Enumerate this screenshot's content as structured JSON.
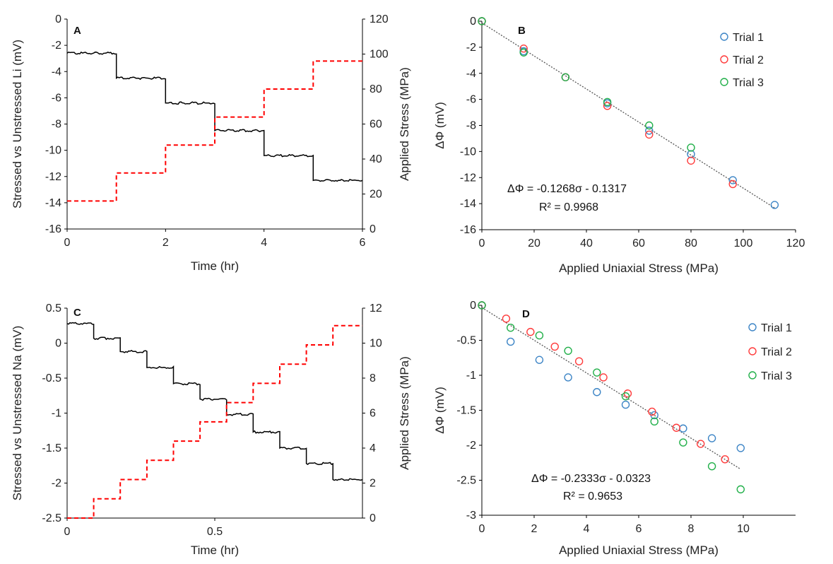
{
  "chart_data": [
    {
      "panel": "A",
      "type": "line",
      "xlabel": "Time (hr)",
      "ylabel": "Stressed vs Unstressed Li (mV)",
      "y2label": "Applied Stress (MPa)",
      "xlim": [
        0,
        6
      ],
      "ylim": [
        -16,
        0
      ],
      "y2lim": [
        0,
        120
      ],
      "xticks": [
        "0",
        "2",
        "4",
        "6"
      ],
      "yticks": [
        "0",
        "-2",
        "-4",
        "-6",
        "-8",
        "-10",
        "-12",
        "-14",
        "-16"
      ],
      "y2ticks": [
        "120",
        "100",
        "80",
        "60",
        "40",
        "20",
        "0"
      ],
      "series": [
        {
          "axis": "left",
          "color": "#000000",
          "style": "solid",
          "x": [
            0,
            1,
            1,
            2,
            2,
            3,
            3,
            4,
            4,
            5,
            5,
            6
          ],
          "y": [
            -2.6,
            -2.6,
            -4.5,
            -4.5,
            -6.4,
            -6.4,
            -8.5,
            -8.5,
            -10.4,
            -10.4,
            -12.3,
            -12.3
          ]
        },
        {
          "axis": "right",
          "color": "#ff0000",
          "style": "dashed",
          "x": [
            0,
            1,
            1,
            2,
            2,
            3,
            3,
            4,
            4,
            5,
            5,
            6
          ],
          "y": [
            16,
            16,
            32,
            32,
            48,
            48,
            64,
            64,
            80,
            80,
            96,
            96
          ]
        }
      ]
    },
    {
      "panel": "B",
      "type": "scatter",
      "xlabel": "Applied Uniaxial Stress (MPa)",
      "ylabel": "ΔΦ (mV)",
      "xlim": [
        0,
        120
      ],
      "ylim": [
        -16,
        0
      ],
      "xticks": [
        "0",
        "20",
        "40",
        "60",
        "80",
        "100",
        "120"
      ],
      "yticks": [
        "0",
        "-2",
        "-4",
        "-6",
        "-8",
        "-10",
        "-12",
        "-14",
        "-16"
      ],
      "equation": "ΔΦ = -0.1268σ - 0.1317",
      "r2": "R² = 0.9968",
      "trend": {
        "slope": -0.1268,
        "intercept": -0.1317,
        "x": [
          0,
          112
        ]
      },
      "series": [
        {
          "name": "Trial 1",
          "color": "#3d85c6",
          "x": [
            0,
            16,
            32,
            48,
            64,
            80,
            96,
            112
          ],
          "y": [
            0,
            -2.3,
            -4.3,
            -6.3,
            -8.4,
            -10.2,
            -12.2,
            -14.1
          ]
        },
        {
          "name": "Trial 2",
          "color": "#ff3b3b",
          "x": [
            0,
            16,
            32,
            48,
            64,
            80,
            96
          ],
          "y": [
            0,
            -2.1,
            -4.3,
            -6.5,
            -8.7,
            -10.7,
            -12.5
          ]
        },
        {
          "name": "Trial 3",
          "color": "#22b04a",
          "x": [
            0,
            16,
            32,
            48,
            64,
            80
          ],
          "y": [
            0,
            -2.4,
            -4.3,
            -6.2,
            -8.0,
            -9.7
          ]
        }
      ]
    },
    {
      "panel": "C",
      "type": "line",
      "xlabel": "Time (hr)",
      "ylabel": "Stressed vs Unstressed Na (mV)",
      "y2label": "Applied Stress (MPa)",
      "xlim": [
        0,
        1.0
      ],
      "ylim": [
        -2.5,
        0.5
      ],
      "y2lim": [
        0,
        12
      ],
      "xticks": [
        "0",
        "0.5"
      ],
      "yticks": [
        "0.5",
        "0",
        "-0.5",
        "-1",
        "-1.5",
        "-2",
        "-2.5"
      ],
      "y2ticks": [
        "12",
        "10",
        "8",
        "6",
        "4",
        "2",
        "0"
      ],
      "series": [
        {
          "axis": "left",
          "color": "#000000",
          "style": "solid",
          "x": [
            0,
            0.09,
            0.09,
            0.18,
            0.18,
            0.27,
            0.27,
            0.36,
            0.36,
            0.45,
            0.45,
            0.54,
            0.54,
            0.63,
            0.63,
            0.72,
            0.72,
            0.81,
            0.81,
            0.9,
            0.9,
            1.0
          ],
          "y": [
            0.28,
            0.28,
            0.07,
            0.07,
            -0.12,
            -0.12,
            -0.35,
            -0.35,
            -0.58,
            -0.58,
            -0.8,
            -0.8,
            -1.02,
            -1.02,
            -1.27,
            -1.27,
            -1.5,
            -1.5,
            -1.72,
            -1.72,
            -1.95,
            -1.95
          ]
        },
        {
          "axis": "right",
          "color": "#ff0000",
          "style": "dashed",
          "x": [
            0,
            0.09,
            0.09,
            0.18,
            0.18,
            0.27,
            0.27,
            0.36,
            0.36,
            0.45,
            0.45,
            0.54,
            0.54,
            0.63,
            0.63,
            0.72,
            0.72,
            0.81,
            0.81,
            0.9,
            0.9,
            1.0
          ],
          "y": [
            0,
            0,
            1.1,
            1.1,
            2.2,
            2.2,
            3.3,
            3.3,
            4.4,
            4.4,
            5.5,
            5.5,
            6.6,
            6.6,
            7.7,
            7.7,
            8.8,
            8.8,
            9.9,
            9.9,
            11.0,
            11.0
          ]
        }
      ]
    },
    {
      "panel": "D",
      "type": "scatter",
      "xlabel": "Applied Uniaxial Stress (MPa)",
      "ylabel": "ΔΦ (mV)",
      "xlim": [
        0,
        12
      ],
      "ylim": [
        -3,
        0
      ],
      "xticks": [
        "0",
        "2",
        "4",
        "6",
        "8",
        "10"
      ],
      "yticks": [
        "0",
        "-0.5",
        "-1",
        "-1.5",
        "-2",
        "-2.5",
        "-3"
      ],
      "equation": "ΔΦ = -0.2333σ - 0.0323",
      "r2": "R² = 0.9653",
      "trend": {
        "slope": -0.2333,
        "intercept": -0.0323,
        "x": [
          0,
          9.9
        ]
      },
      "series": [
        {
          "name": "Trial 1",
          "color": "#3d85c6",
          "x": [
            0,
            1.1,
            2.2,
            3.3,
            4.4,
            5.5,
            6.6,
            7.7,
            8.8,
            9.9
          ],
          "y": [
            0,
            -0.52,
            -0.78,
            -1.03,
            -1.24,
            -1.42,
            -1.57,
            -1.76,
            -1.9,
            -2.04
          ]
        },
        {
          "name": "Trial 2",
          "color": "#ff3b3b",
          "x": [
            0,
            0.93,
            1.86,
            2.79,
            3.72,
            4.65,
            5.58,
            6.51,
            7.44,
            8.37,
            9.3
          ],
          "y": [
            0,
            -0.19,
            -0.38,
            -0.59,
            -0.8,
            -1.03,
            -1.26,
            -1.52,
            -1.75,
            -1.98,
            -2.2
          ]
        },
        {
          "name": "Trial 3",
          "color": "#22b04a",
          "x": [
            0,
            1.1,
            2.2,
            3.3,
            4.4,
            5.5,
            6.6,
            7.7,
            8.8,
            9.9
          ],
          "y": [
            0,
            -0.32,
            -0.43,
            -0.65,
            -0.96,
            -1.3,
            -1.66,
            -1.96,
            -2.3,
            -2.63
          ]
        }
      ]
    }
  ]
}
